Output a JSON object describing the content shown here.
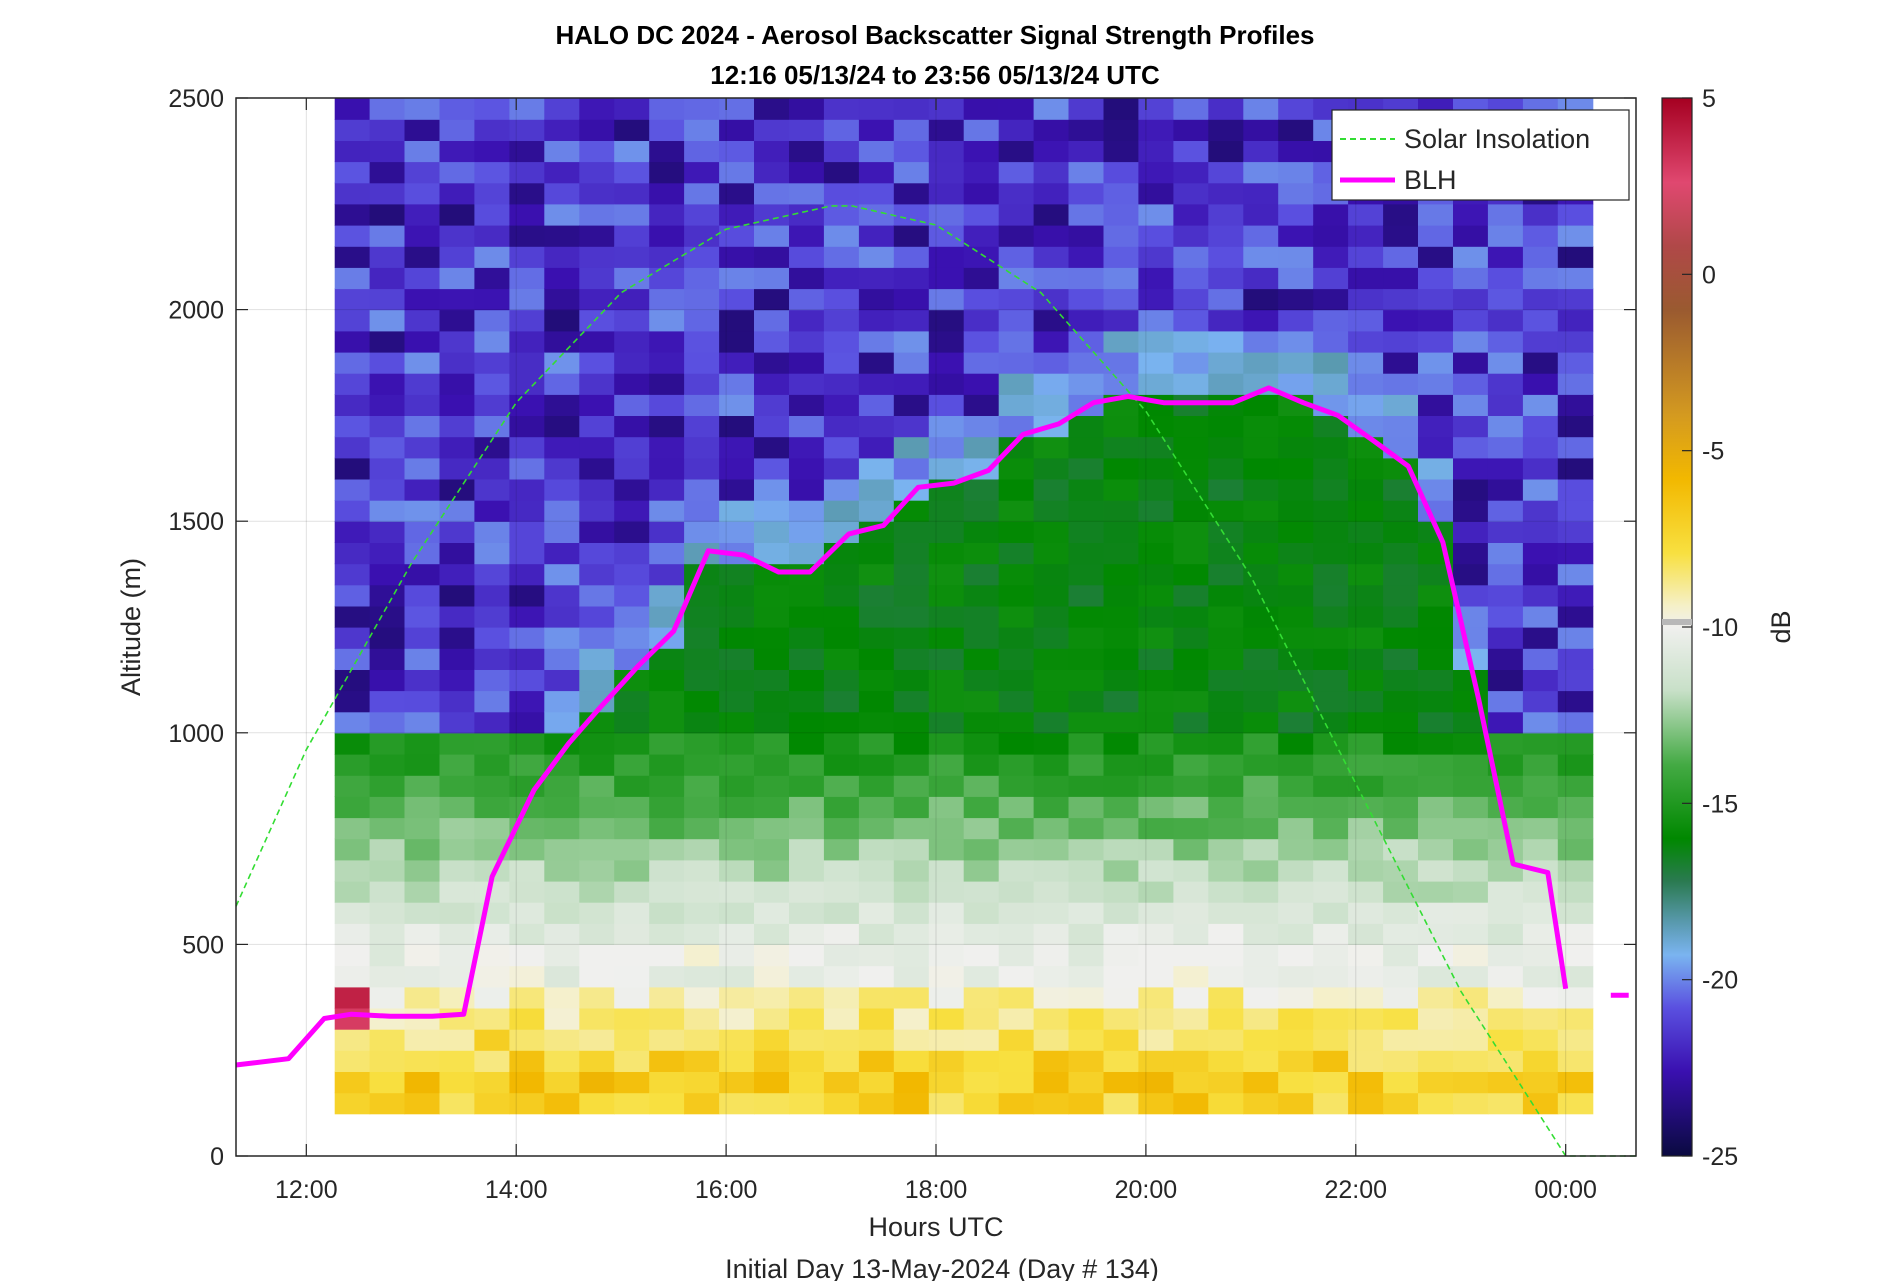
{
  "chart_data": {
    "type": "heatmap",
    "title": "HALO DC 2024 - Aerosol Backscatter Signal Strength Profiles",
    "subtitle": "12:16 05/13/24 to 23:56 05/13/24  UTC",
    "xlabel": "Hours UTC",
    "ylabel": "Altitude (m)",
    "footer": "Initial Day 13-May-2024 (Day # 134)",
    "x_range_hours": [
      11.33,
      24.67
    ],
    "y_range": [
      0,
      2500
    ],
    "x_ticks": [
      {
        "value": 12,
        "label": "12:00"
      },
      {
        "value": 14,
        "label": "14:00"
      },
      {
        "value": 16,
        "label": "16:00"
      },
      {
        "value": 18,
        "label": "18:00"
      },
      {
        "value": 20,
        "label": "20:00"
      },
      {
        "value": 22,
        "label": "22:00"
      },
      {
        "value": 24,
        "label": "00:00"
      }
    ],
    "y_ticks": [
      "0",
      "500",
      "1000",
      "1500",
      "2000",
      "2500"
    ],
    "grid": true,
    "legend_position": "top-right",
    "colorbar": {
      "label": "dB",
      "range": [
        -25,
        5
      ],
      "ticks": [
        "5",
        "0",
        "-5",
        "-10",
        "-15",
        "-20",
        "-25"
      ]
    },
    "heatmap": {
      "time_start": 12.27,
      "time_end": 23.93,
      "alt_start": 100,
      "alt_end": 2500,
      "time_step_hours": 0.333,
      "alt_step_m": 50,
      "layers_dB": [
        {
          "below_m": 150,
          "value": -7
        },
        {
          "below_m": 400,
          "value": -7
        },
        {
          "below_m": 500,
          "value": -10
        },
        {
          "below_m": 700,
          "value": -12
        },
        {
          "below_m": 1000,
          "value": -14
        },
        {
          "below_m": "BLH",
          "value": -16
        },
        {
          "below_m": 2500,
          "value": -21.5
        }
      ]
    },
    "series": [
      {
        "name": "Solar Insolation",
        "color": "#33dd33",
        "style": "dashed",
        "x": [
          11.33,
          12,
          13,
          14,
          15,
          16,
          17,
          17.2,
          18,
          19,
          20,
          21,
          22,
          23,
          24,
          24.67
        ],
        "y": [
          590,
          960,
          1400,
          1780,
          2040,
          2190,
          2245,
          2245,
          2200,
          2040,
          1760,
          1370,
          880,
          390,
          0,
          0
        ]
      },
      {
        "name": "BLH",
        "color": "#ff00ff",
        "style": "solid",
        "x": [
          11.33,
          11.5,
          11.83,
          12.17,
          12.43,
          12.8,
          13.2,
          13.5,
          13.77,
          14.17,
          14.5,
          14.8,
          15.17,
          15.5,
          15.83,
          16.17,
          16.5,
          16.8,
          17.17,
          17.5,
          17.83,
          18.17,
          18.5,
          18.83,
          19.17,
          19.5,
          19.83,
          20.17,
          20.5,
          20.83,
          21.17,
          21.5,
          21.83,
          22.17,
          22.5,
          22.83,
          23.17,
          23.5,
          23.83,
          24.0
        ],
        "y": [
          215,
          220,
          230,
          325,
          335,
          330,
          330,
          335,
          660,
          865,
          975,
          1060,
          1160,
          1240,
          1430,
          1420,
          1380,
          1380,
          1470,
          1490,
          1580,
          1590,
          1620,
          1705,
          1730,
          1780,
          1795,
          1780,
          1780,
          1780,
          1815,
          1780,
          1750,
          1690,
          1630,
          1450,
          1080,
          690,
          670,
          395
        ]
      },
      {
        "name": "BLH-late",
        "color": "#ff00ff",
        "style": "solid",
        "x": [
          24.43,
          24.6
        ],
        "y": [
          380,
          380
        ]
      }
    ]
  },
  "legend": [
    {
      "label": "Solar Insolation",
      "color": "#33dd33",
      "style": "dashed"
    },
    {
      "label": "BLH",
      "color": "#ff00ff",
      "style": "solid"
    }
  ]
}
